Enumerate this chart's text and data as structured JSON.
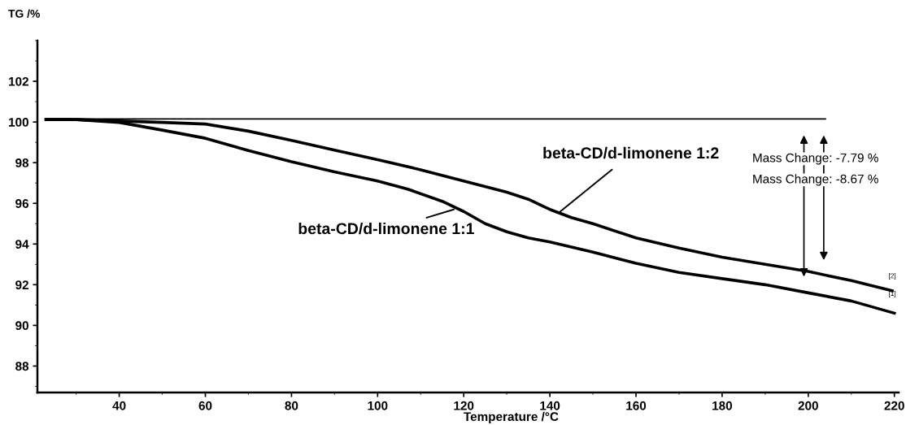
{
  "chart_data": {
    "type": "line",
    "ylabel": "TG /%",
    "xlabel": "Temperature /°C",
    "xlim": [
      21,
      221
    ],
    "ylim": [
      86.7,
      104
    ],
    "xticks": [
      40,
      60,
      80,
      100,
      120,
      140,
      160,
      180,
      200,
      220
    ],
    "yticks": [
      88,
      90,
      92,
      94,
      96,
      98,
      100,
      102
    ],
    "grid": false,
    "legend": false,
    "marker": "none",
    "line_style": "solid",
    "series": [
      {
        "color": "#000000",
        "x": [
          23,
          204
        ],
        "values": [
          100.15,
          100.15
        ]
      },
      {
        "color": "#000000",
        "x": [
          23,
          30,
          40,
          50,
          60,
          70,
          80,
          90,
          100,
          107,
          115,
          120,
          125,
          130,
          135,
          140,
          150,
          160,
          170,
          180,
          190,
          200,
          210,
          220
        ],
        "values": [
          100.12,
          100.12,
          99.98,
          99.6,
          99.2,
          98.6,
          98.05,
          97.55,
          97.1,
          96.7,
          96.1,
          95.6,
          95.0,
          94.6,
          94.3,
          94.1,
          93.6,
          93.05,
          92.6,
          92.3,
          92.0,
          91.6,
          91.2,
          90.6
        ]
      },
      {
        "color": "#000000",
        "x": [
          23,
          30,
          40,
          50,
          60,
          70,
          80,
          90,
          100,
          110,
          120,
          130,
          135,
          140,
          145,
          150,
          160,
          170,
          180,
          190,
          200,
          210,
          219.5
        ],
        "values": [
          100.12,
          100.12,
          100.05,
          99.98,
          99.9,
          99.55,
          99.1,
          98.62,
          98.15,
          97.65,
          97.1,
          96.55,
          96.2,
          95.7,
          95.3,
          95.0,
          94.3,
          93.8,
          93.35,
          93.0,
          92.65,
          92.2,
          91.7
        ]
      }
    ],
    "annotations": [
      {
        "text": "beta-CD/d-limonene 1:1",
        "x": 117.7,
        "y": 95.7
      },
      {
        "text": "beta-CD/d-limonene 1:2",
        "x": 142.2,
        "y": 95.56
      },
      "Mass Change: -7.79 %",
      "Mass Change: -8.67 %",
      "[2]",
      "[1]"
    ]
  }
}
